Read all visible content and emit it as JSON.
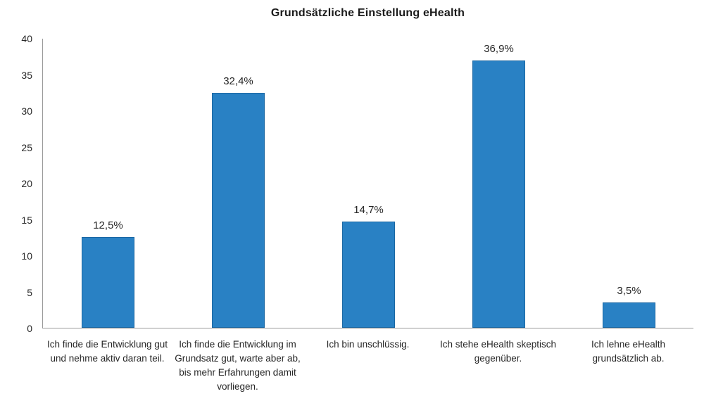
{
  "chart_data": {
    "type": "bar",
    "title": "Grundsätzliche Einstellung eHealth",
    "categories": [
      "Ich finde die Entwicklung gut und nehme aktiv daran teil.",
      "Ich finde die Entwicklung im Grundsatz gut, warte aber ab, bis mehr Erfahrungen damit vorliegen.",
      "Ich bin unschlüssig.",
      "Ich stehe eHealth skeptisch gegenüber.",
      "Ich lehne eHealth grundsätzlich ab."
    ],
    "values": [
      12.5,
      32.4,
      14.7,
      36.9,
      3.5
    ],
    "value_labels": [
      "12,5%",
      "32,4%",
      "14,7%",
      "36,9%",
      "3,5%"
    ],
    "xlabel": "",
    "ylabel": "",
    "ylim": [
      0,
      40
    ],
    "yticks": [
      0,
      5,
      10,
      15,
      20,
      25,
      30,
      35,
      40
    ],
    "grid": false,
    "legend": "none",
    "colors": {
      "bar_fill": "#2981C4",
      "bar_border": "#1A67A3",
      "axis": "#9A9A9A",
      "text": "#262626",
      "title_text": "#1A1A1A"
    }
  }
}
